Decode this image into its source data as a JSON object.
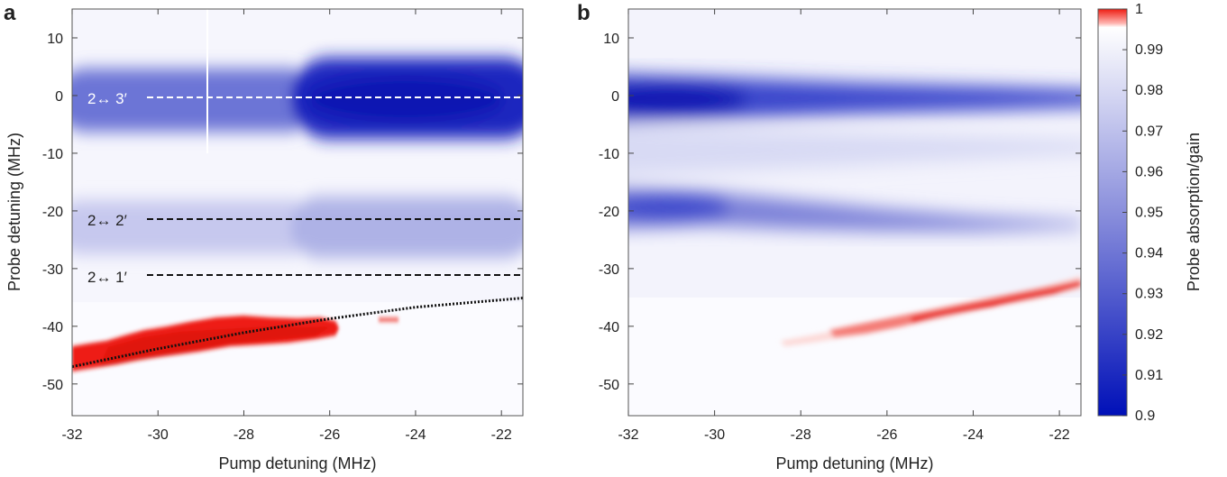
{
  "colors": {
    "absorption_min": "#0010b8",
    "neutral": "#ffffff",
    "gain": "#ee1c12",
    "line_white": "#ffffff",
    "line_black": "#111111"
  },
  "colorbar": {
    "label": "Probe absorption/gain",
    "ticks": [
      "0.9",
      "0.91",
      "0.92",
      "0.93",
      "0.94",
      "0.95",
      "0.96",
      "0.97",
      "0.98",
      "0.99",
      "1"
    ]
  },
  "chart_data": [
    {
      "panel": "a",
      "type": "heatmap",
      "xlabel": "Pump detuning (MHz)",
      "ylabel": "Probe detuning (MHz)",
      "xlim": [
        -32,
        -21.5
      ],
      "ylim": [
        -55.5,
        15
      ],
      "xticks": [
        "-32",
        "-30",
        "-28",
        "-26",
        "-24",
        "-22"
      ],
      "yticks": [
        "-50",
        "-40",
        "-30",
        "-20",
        "-10",
        "0",
        "10"
      ],
      "colorscale_range": [
        0.9,
        1.0
      ],
      "absorption_features": [
        {
          "probe_detuning": 0,
          "depth_low_pump": 0.06,
          "depth_high_pump": 0.1
        },
        {
          "probe_detuning": -21,
          "depth_low_pump": 0.03,
          "depth_high_pump": 0.04
        }
      ],
      "gain_feature": {
        "pump_range": [
          -32,
          -26
        ],
        "probe_detuning_at_start": -46,
        "probe_detuning_at_end": -39
      },
      "transition_lines": [
        {
          "label": "2↔ 3′",
          "probe_detuning": 0,
          "style": "dashed-white"
        },
        {
          "label": "2↔ 2′",
          "probe_detuning": -21,
          "style": "dashed-black"
        },
        {
          "label": "2↔ 1′",
          "probe_detuning": -30.5,
          "style": "dashed-black"
        }
      ],
      "fit_curve": {
        "style": "dotted-black",
        "x": [
          -32,
          -30,
          -28,
          -26,
          -24,
          -21.5
        ],
        "y": [
          -47,
          -43.9,
          -41.1,
          -38.7,
          -36.7,
          -35.1
        ]
      }
    },
    {
      "panel": "b",
      "type": "heatmap",
      "xlabel": "Pump detuning (MHz)",
      "ylabel": "",
      "xlim": [
        -32,
        -21.5
      ],
      "ylim": [
        -55.5,
        15
      ],
      "xticks": [
        "-32",
        "-30",
        "-28",
        "-26",
        "-24",
        "-22"
      ],
      "yticks": [
        "-50",
        "-40",
        "-30",
        "-20",
        "-10",
        "0",
        "10"
      ],
      "colorscale_range": [
        0.9,
        1.0
      ],
      "absorption_features": [
        {
          "probe_detuning": 0,
          "depth_low_pump": 0.09,
          "depth_high_pump": 0.03
        },
        {
          "probe_detuning": -19.5,
          "depth_low_pump": 0.07,
          "depth_high_pump": 0.01
        }
      ],
      "gain_feature": {
        "pump_range": [
          -28.5,
          -21.5
        ],
        "probe_detuning_at_start": -42.5,
        "probe_detuning_at_end": -32
      }
    }
  ]
}
